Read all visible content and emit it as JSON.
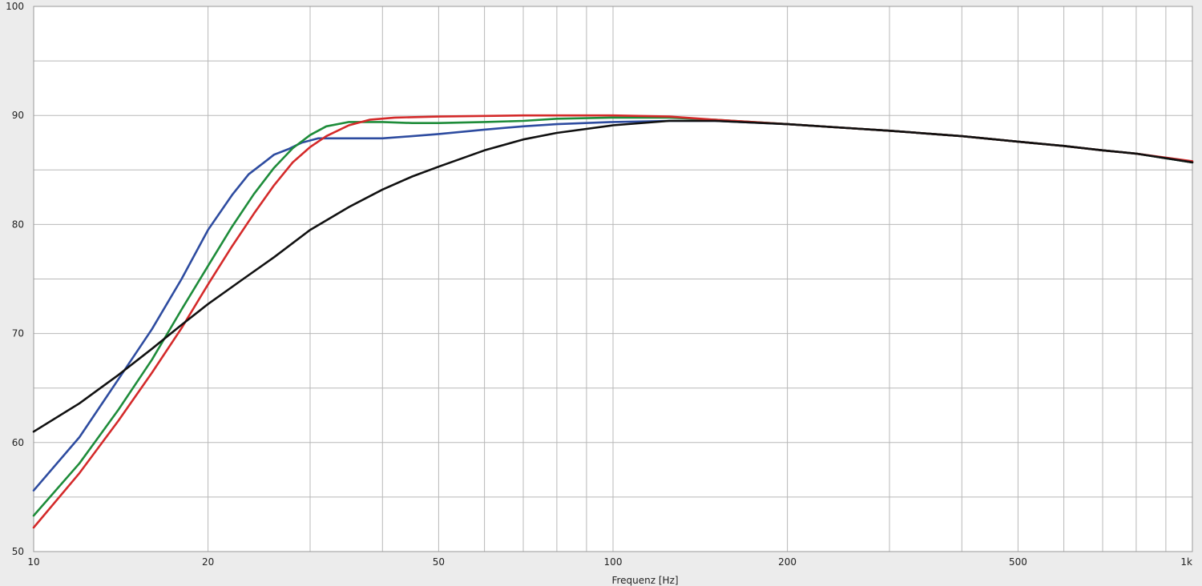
{
  "chart_data": {
    "type": "line",
    "xlabel": "Frequenz [Hz]",
    "ylabel": "",
    "x_scale": "log",
    "xlim": [
      10,
      1000
    ],
    "ylim": [
      50,
      100
    ],
    "x_ticks": [
      {
        "value": 10,
        "label": "10"
      },
      {
        "value": 20,
        "label": "20"
      },
      {
        "value": 50,
        "label": "50"
      },
      {
        "value": 100,
        "label": "100"
      },
      {
        "value": 200,
        "label": "200"
      },
      {
        "value": 500,
        "label": "500"
      },
      {
        "value": 1000,
        "label": "1k"
      }
    ],
    "x_minor_grid": [
      30,
      40,
      60,
      70,
      80,
      90,
      300,
      400,
      600,
      700,
      800,
      900
    ],
    "y_ticks": [
      {
        "value": 50,
        "label": "50"
      },
      {
        "value": 60,
        "label": "60"
      },
      {
        "value": 70,
        "label": "70"
      },
      {
        "value": 80,
        "label": "80"
      },
      {
        "value": 90,
        "label": "90"
      },
      {
        "value": 100,
        "label": "100"
      }
    ],
    "y_minor_grid": [
      55,
      65,
      75,
      85,
      95
    ],
    "grid": true,
    "legend": "none",
    "colors": {
      "background": "#ececec",
      "plot_background": "#ffffff",
      "grid": "#b8b8b8"
    },
    "series": [
      {
        "color": "#2e4ca0",
        "points": [
          [
            10,
            55.6
          ],
          [
            12,
            60.5
          ],
          [
            14,
            65.8
          ],
          [
            16,
            70.4
          ],
          [
            18,
            75.0
          ],
          [
            20,
            79.5
          ],
          [
            22,
            82.7
          ],
          [
            23.5,
            84.6
          ],
          [
            25,
            85.7
          ],
          [
            26,
            86.4
          ],
          [
            27.5,
            86.9
          ],
          [
            29,
            87.5
          ],
          [
            31,
            87.9
          ],
          [
            35,
            87.9
          ],
          [
            40,
            87.9
          ],
          [
            45,
            88.1
          ],
          [
            50,
            88.3
          ],
          [
            60,
            88.7
          ],
          [
            70,
            89.0
          ],
          [
            80,
            89.2
          ],
          [
            100,
            89.4
          ],
          [
            125,
            89.5
          ],
          [
            150,
            89.5
          ],
          [
            200,
            89.2
          ],
          [
            300,
            88.6
          ],
          [
            400,
            88.1
          ],
          [
            500,
            87.6
          ],
          [
            600,
            87.2
          ],
          [
            700,
            86.8
          ],
          [
            800,
            86.5
          ],
          [
            1000,
            85.7
          ]
        ]
      },
      {
        "color": "#1e8c3a",
        "points": [
          [
            10,
            53.3
          ],
          [
            12,
            58.1
          ],
          [
            14,
            63.0
          ],
          [
            16,
            67.6
          ],
          [
            18,
            72.2
          ],
          [
            20,
            76.2
          ],
          [
            22,
            79.8
          ],
          [
            24,
            82.8
          ],
          [
            26,
            85.2
          ],
          [
            28,
            87.0
          ],
          [
            30,
            88.2
          ],
          [
            32,
            89.0
          ],
          [
            35,
            89.4
          ],
          [
            40,
            89.4
          ],
          [
            45,
            89.3
          ],
          [
            50,
            89.3
          ],
          [
            60,
            89.4
          ],
          [
            70,
            89.5
          ],
          [
            80,
            89.7
          ],
          [
            100,
            89.8
          ],
          [
            125,
            89.8
          ],
          [
            150,
            89.6
          ],
          [
            200,
            89.2
          ],
          [
            300,
            88.6
          ],
          [
            400,
            88.1
          ],
          [
            500,
            87.6
          ],
          [
            600,
            87.2
          ],
          [
            700,
            86.8
          ],
          [
            800,
            86.5
          ],
          [
            1000,
            85.7
          ]
        ]
      },
      {
        "color": "#d42a2a",
        "points": [
          [
            10,
            52.2
          ],
          [
            12,
            57.2
          ],
          [
            14,
            62.0
          ],
          [
            16,
            66.4
          ],
          [
            18,
            70.5
          ],
          [
            20,
            74.5
          ],
          [
            22,
            78.0
          ],
          [
            24,
            81.0
          ],
          [
            26,
            83.6
          ],
          [
            28,
            85.7
          ],
          [
            30,
            87.1
          ],
          [
            32,
            88.1
          ],
          [
            35,
            89.1
          ],
          [
            38,
            89.6
          ],
          [
            42,
            89.8
          ],
          [
            50,
            89.9
          ],
          [
            70,
            90.0
          ],
          [
            100,
            90.0
          ],
          [
            125,
            89.9
          ],
          [
            150,
            89.6
          ],
          [
            200,
            89.2
          ],
          [
            300,
            88.6
          ],
          [
            400,
            88.1
          ],
          [
            500,
            87.6
          ],
          [
            600,
            87.2
          ],
          [
            700,
            86.8
          ],
          [
            800,
            86.5
          ],
          [
            1000,
            85.8
          ]
        ]
      },
      {
        "color": "#111111",
        "points": [
          [
            10,
            61.0
          ],
          [
            12,
            63.6
          ],
          [
            14,
            66.2
          ],
          [
            16,
            68.6
          ],
          [
            18,
            70.8
          ],
          [
            20,
            72.7
          ],
          [
            23,
            75.0
          ],
          [
            26,
            77.0
          ],
          [
            30,
            79.5
          ],
          [
            35,
            81.6
          ],
          [
            40,
            83.2
          ],
          [
            45,
            84.4
          ],
          [
            50,
            85.3
          ],
          [
            60,
            86.8
          ],
          [
            70,
            87.8
          ],
          [
            80,
            88.4
          ],
          [
            100,
            89.1
          ],
          [
            125,
            89.5
          ],
          [
            150,
            89.5
          ],
          [
            200,
            89.2
          ],
          [
            300,
            88.6
          ],
          [
            400,
            88.1
          ],
          [
            500,
            87.6
          ],
          [
            600,
            87.2
          ],
          [
            700,
            86.8
          ],
          [
            800,
            86.5
          ],
          [
            1000,
            85.7
          ]
        ]
      }
    ]
  }
}
